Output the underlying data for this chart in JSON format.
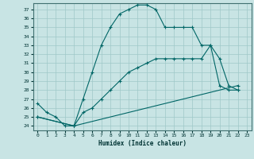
{
  "xlabel": "Humidex (Indice chaleur)",
  "background_color": "#c8e4e4",
  "grid_color": "#9fc8c8",
  "line_color": "#006666",
  "xlim": [
    -0.5,
    23.5
  ],
  "ylim": [
    23.5,
    37.7
  ],
  "yticks": [
    24,
    25,
    26,
    27,
    28,
    29,
    30,
    31,
    32,
    33,
    34,
    35,
    36,
    37
  ],
  "xticks": [
    0,
    1,
    2,
    3,
    4,
    5,
    6,
    7,
    8,
    9,
    10,
    11,
    12,
    13,
    14,
    15,
    16,
    17,
    18,
    19,
    20,
    21,
    22,
    23
  ],
  "line1_x": [
    0,
    1,
    2,
    3,
    4,
    5,
    6,
    7,
    8,
    9,
    10,
    11,
    12,
    13,
    14,
    15,
    16,
    17,
    18,
    19,
    20,
    21,
    22
  ],
  "line1_y": [
    26.5,
    25.5,
    25.0,
    24.0,
    24.0,
    27.0,
    30.0,
    33.0,
    35.0,
    36.5,
    37.0,
    37.5,
    37.5,
    37.0,
    35.0,
    35.0,
    35.0,
    35.0,
    33.0,
    33.0,
    28.5,
    28.0,
    28.0
  ],
  "line2_x": [
    0,
    4,
    5,
    6,
    7,
    8,
    9,
    10,
    11,
    12,
    13,
    14,
    15,
    16,
    17,
    18,
    19,
    20,
    21,
    22
  ],
  "line2_y": [
    25.0,
    24.0,
    25.5,
    26.0,
    27.0,
    28.0,
    29.0,
    30.0,
    30.5,
    31.0,
    31.5,
    31.5,
    31.5,
    31.5,
    31.5,
    31.5,
    33.0,
    31.5,
    28.5,
    28.0
  ],
  "line3_x": [
    0,
    4,
    22
  ],
  "line3_y": [
    25.0,
    24.0,
    28.5
  ]
}
